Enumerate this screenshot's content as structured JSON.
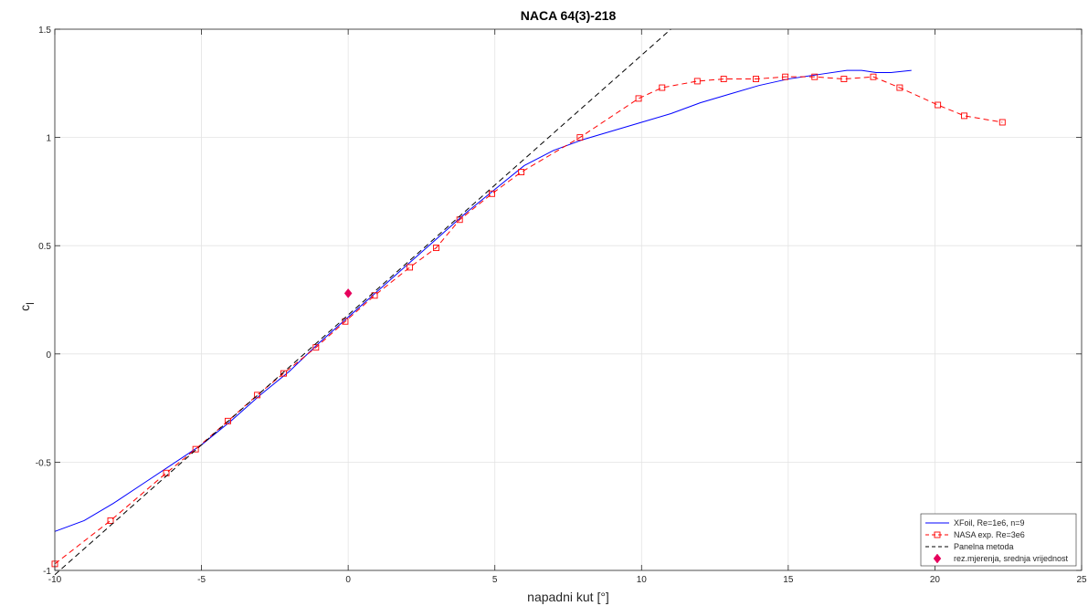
{
  "chart_data": {
    "type": "line",
    "title": "NACA 64(3)-218",
    "xlabel": "napadni kut [°]",
    "ylabel": "c",
    "ylabel_subscript": "l",
    "xlim": [
      -10,
      25
    ],
    "ylim": [
      -1,
      1.5
    ],
    "xticks": [
      -10,
      -5,
      0,
      5,
      10,
      15,
      20,
      25
    ],
    "xtick_labels": [
      "-10",
      "-5",
      "0",
      "5",
      "10",
      "15",
      "20",
      "25"
    ],
    "yticks": [
      -1,
      -0.5,
      0,
      0.5,
      1,
      1.5
    ],
    "ytick_labels": [
      "-1",
      "-0.5",
      "0",
      "0.5",
      "1",
      "1.5"
    ],
    "grid": true,
    "legend_position": "bottom-right",
    "series": [
      {
        "name": "XFoil, Re=1e6, n=9",
        "color": "#0000ff",
        "style": "solid",
        "marker": "none",
        "x": [
          -10,
          -9,
          -8,
          -7,
          -6,
          -5,
          -4,
          -3,
          -2,
          -1,
          0,
          1,
          2,
          3,
          4,
          5,
          6,
          7,
          8,
          9,
          10,
          11,
          12,
          13,
          14,
          15,
          16,
          17,
          17.5,
          18,
          18.5,
          19.2
        ],
        "y": [
          -0.82,
          -0.77,
          -0.69,
          -0.6,
          -0.51,
          -0.42,
          -0.31,
          -0.19,
          -0.08,
          0.05,
          0.17,
          0.29,
          0.41,
          0.53,
          0.65,
          0.76,
          0.87,
          0.94,
          0.99,
          1.03,
          1.07,
          1.11,
          1.16,
          1.2,
          1.24,
          1.27,
          1.29,
          1.31,
          1.31,
          1.3,
          1.3,
          1.31
        ]
      },
      {
        "name": "NASA exp. Re=3e6",
        "color": "#ff0000",
        "style": "dashed",
        "marker": "square",
        "x": [
          -10,
          -8.1,
          -6.2,
          -5.2,
          -4.1,
          -3.1,
          -2.2,
          -1.1,
          -0.1,
          0.9,
          2.1,
          3,
          3.8,
          4.9,
          5.9,
          7.9,
          9.9,
          10.7,
          11.9,
          12.8,
          13.9,
          14.9,
          15.9,
          16.9,
          17.9,
          18.8,
          20.1,
          21,
          22.3
        ],
        "y": [
          -0.97,
          -0.77,
          -0.55,
          -0.44,
          -0.31,
          -0.19,
          -0.09,
          0.03,
          0.15,
          0.27,
          0.4,
          0.49,
          0.62,
          0.74,
          0.84,
          1,
          1.18,
          1.23,
          1.26,
          1.27,
          1.27,
          1.28,
          1.28,
          1.27,
          1.28,
          1.23,
          1.15,
          1.1,
          1.07
        ]
      },
      {
        "name": "Panelna metoda",
        "color": "#000000",
        "style": "dashed",
        "marker": "none",
        "x": [
          -10,
          11
        ],
        "y": [
          -1.02,
          1.5
        ]
      },
      {
        "name": "rez.mjerenja, srednja vrijednost",
        "color": "#e6005c",
        "style": "none",
        "marker": "diamond",
        "x": [
          0
        ],
        "y": [
          0.28
        ]
      }
    ]
  }
}
